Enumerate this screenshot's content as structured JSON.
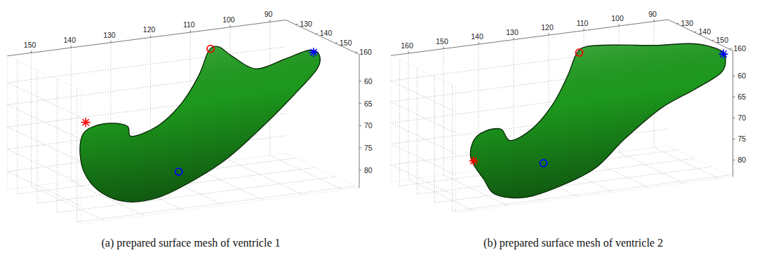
{
  "chart_data": [
    {
      "type": "surface",
      "caption": "(a) prepared surface mesh of ventricle 1",
      "xlim": [
        86,
        156
      ],
      "ylim": [
        125,
        162
      ],
      "zlim": [
        54,
        84
      ],
      "xticks": [
        90,
        100,
        110,
        120,
        130,
        140,
        150
      ],
      "yticks": [
        130,
        140,
        150,
        160
      ],
      "zticks": [
        60,
        65,
        70,
        75,
        80
      ],
      "grid": true,
      "surface": {
        "color": "#22b522",
        "x": [
          144.5,
          141.5,
          137.1,
          133.3,
          132.2,
          125.7,
          119.8,
          115.4,
          112.8,
          110.3,
          107.1,
          101.0,
          93.9,
          92.7,
          90.1,
          90.6,
          96.3,
          99.2,
          108.0,
          116.8,
          133.2,
          141.1,
          147.3,
          151.3,
          152.7
        ],
        "y": [
          140,
          140,
          140,
          140,
          140,
          140,
          140,
          140,
          140,
          140,
          140,
          140,
          140,
          150,
          150,
          150,
          150,
          140,
          140,
          140,
          155,
          155,
          155,
          155,
          155
        ],
        "z": [
          69.8,
          68.3,
          68.2,
          69.3,
          71.7,
          70.1,
          65.8,
          60.0,
          54.6,
          54.1,
          56.5,
          60.1,
          58.8,
          54.8,
          56.1,
          59.2,
          64.3,
          73.2,
          79.3,
          83.4,
          82.2,
          82.2,
          79.5,
          75.1,
          70.2
        ]
      },
      "points": [
        {
          "color": "#ff0000",
          "marker": "star",
          "x": 143.8,
          "y": 140,
          "z": 67.2
        },
        {
          "color": "#ff0000",
          "marker": "circle",
          "x": 112.4,
          "y": 140,
          "z": 54.3
        },
        {
          "color": "#0000ff",
          "marker": "star",
          "x": 91.5,
          "y": 150,
          "z": 55.4
        },
        {
          "color": "#0000ff",
          "marker": "circle",
          "x": 120.4,
          "y": 140,
          "z": 81.0
        }
      ]
    },
    {
      "type": "surface",
      "caption": "(b) prepared surface mesh of ventricle 2",
      "xlim": [
        86,
        165
      ],
      "ylim": [
        125,
        162
      ],
      "zlim": [
        54,
        84
      ],
      "xticks": [
        90,
        100,
        110,
        120,
        130,
        140,
        150,
        160
      ],
      "yticks": [
        130,
        140,
        150,
        160
      ],
      "zticks": [
        60,
        65,
        70,
        75,
        80
      ],
      "grid": true,
      "surface": {
        "color": "#22b522",
        "x": [
          149.6,
          148.9,
          145.7,
          141.1,
          138.4,
          132.1,
          126.1,
          121.9,
          119.7,
          116.8,
          107.5,
          97.3,
          91.0,
          88.4,
          87.1,
          88.4,
          91.0,
          95.6,
          105.8,
          121.8,
          132.0,
          144.2,
          152.6,
          156.0
        ],
        "y": [
          140,
          140,
          140,
          140,
          140,
          140,
          140,
          140,
          140,
          140,
          140,
          140,
          150,
          160,
          160,
          160,
          150,
          140,
          140,
          155,
          155,
          160,
          160,
          160
        ],
        "z": [
          77.3,
          73.0,
          71.1,
          71.1,
          74.1,
          71.9,
          66.5,
          60.1,
          55.7,
          54.1,
          54.7,
          55.9,
          54.2,
          54.1,
          56.2,
          59.4,
          65.1,
          71.1,
          77.2,
          79.5,
          82.7,
          83.0,
          81.4,
          77.4
        ]
      },
      "points": [
        {
          "color": "#ff0000",
          "marker": "star",
          "x": 148.9,
          "y": 140,
          "z": 77.8
        },
        {
          "color": "#ff0000",
          "marker": "circle",
          "x": 118.8,
          "y": 140,
          "z": 55.3
        },
        {
          "color": "#0000ff",
          "marker": "star",
          "x": 87.7,
          "y": 160,
          "z": 55.0
        },
        {
          "color": "#0000ff",
          "marker": "circle",
          "x": 129.0,
          "y": 140,
          "z": 80.5
        }
      ]
    }
  ]
}
